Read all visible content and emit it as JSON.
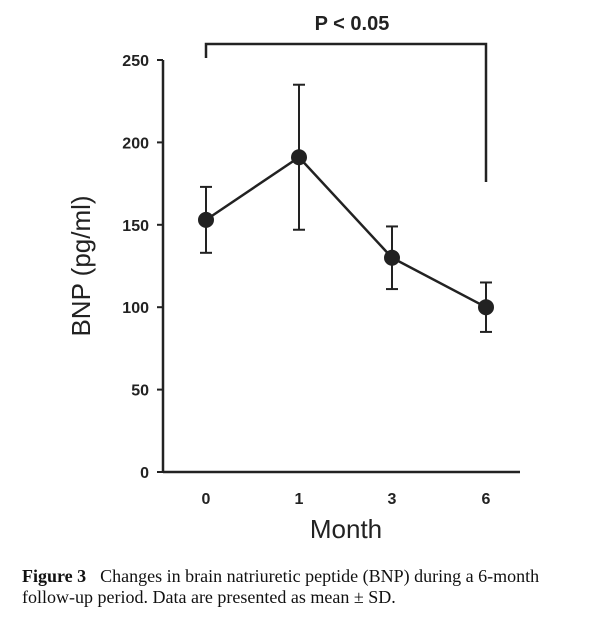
{
  "chart_data": {
    "type": "line",
    "categories": [
      "0",
      "1",
      "3",
      "6"
    ],
    "series": [
      {
        "values": [
          153,
          191,
          130,
          100
        ],
        "error_sd": [
          20,
          44,
          19,
          15
        ]
      }
    ],
    "xlabel": "Month",
    "ylabel": "BNP (pg/ml)",
    "ylim": [
      0,
      250
    ],
    "yticks": [
      0,
      50,
      100,
      150,
      200,
      250
    ],
    "grid": false,
    "legend": "none",
    "annotation": {
      "text": "P < 0.05",
      "from": "0",
      "to": "6"
    },
    "line_color": "#222222"
  },
  "caption": {
    "figure_number": "Figure 3",
    "text": "Changes in brain natriuretic peptide (BNP) during a 6-month follow-up period. Data are presented as mean ± SD."
  }
}
